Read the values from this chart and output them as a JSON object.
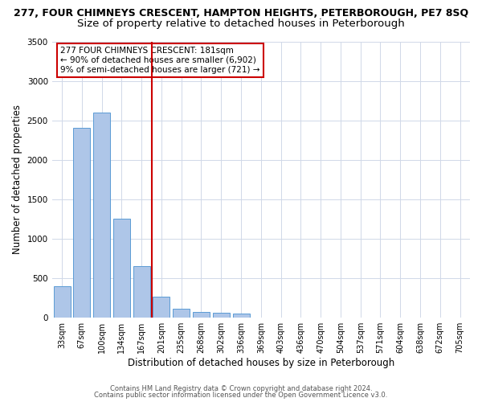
{
  "title": "277, FOUR CHIMNEYS CRESCENT, HAMPTON HEIGHTS, PETERBOROUGH, PE7 8SQ",
  "subtitle": "Size of property relative to detached houses in Peterborough",
  "xlabel": "Distribution of detached houses by size in Peterborough",
  "ylabel": "Number of detached properties",
  "categories": [
    "33sqm",
    "67sqm",
    "100sqm",
    "134sqm",
    "167sqm",
    "201sqm",
    "235sqm",
    "268sqm",
    "302sqm",
    "336sqm",
    "369sqm",
    "403sqm",
    "436sqm",
    "470sqm",
    "504sqm",
    "537sqm",
    "571sqm",
    "604sqm",
    "638sqm",
    "672sqm",
    "705sqm"
  ],
  "values": [
    390,
    2400,
    2600,
    1250,
    650,
    260,
    110,
    65,
    55,
    45,
    0,
    0,
    0,
    0,
    0,
    0,
    0,
    0,
    0,
    0,
    0
  ],
  "bar_color": "#aec6e8",
  "bar_edge_color": "#5b9bd5",
  "vline_color": "#cc0000",
  "annotation_text": "277 FOUR CHIMNEYS CRESCENT: 181sqm\n← 90% of detached houses are smaller (6,902)\n9% of semi-detached houses are larger (721) →",
  "annotation_box_color": "#cc0000",
  "ylim": [
    0,
    3500
  ],
  "yticks": [
    0,
    500,
    1000,
    1500,
    2000,
    2500,
    3000,
    3500
  ],
  "footer_line1": "Contains HM Land Registry data © Crown copyright and database right 2024.",
  "footer_line2": "Contains public sector information licensed under the Open Government Licence v3.0.",
  "bg_color": "#ffffff",
  "grid_color": "#d0d8e8",
  "title_fontsize": 9,
  "subtitle_fontsize": 9.5,
  "ylabel_fontsize": 8.5,
  "xlabel_fontsize": 8.5,
  "tick_fontsize": 7,
  "footer_fontsize": 6,
  "ann_fontsize": 7.5
}
